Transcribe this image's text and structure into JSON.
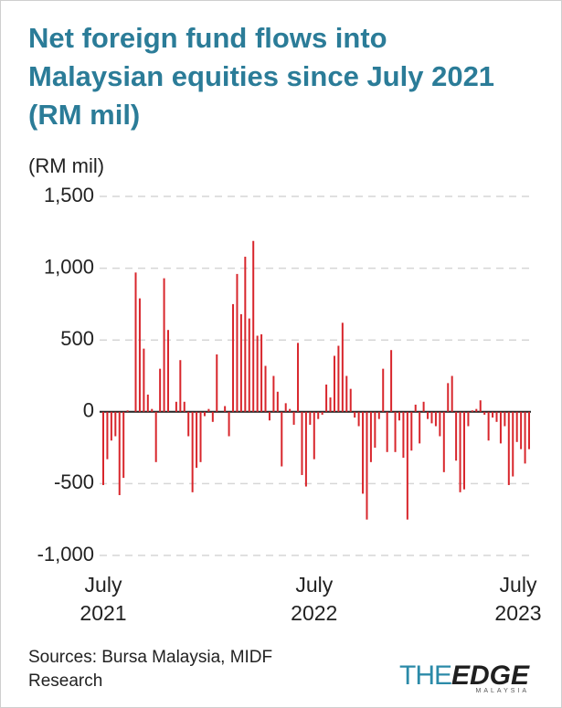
{
  "chart_data": {
    "type": "bar",
    "title": "Net foreign fund flows into Malaysian equities since July 2021 (RM mil)",
    "y_label": "(RM mil)",
    "source": "Sources: Bursa Malaysia, MIDF Research",
    "logo": {
      "the": "THE",
      "edge": "EDGE",
      "sub": "MALAYSIA"
    },
    "color": "#d8262c",
    "grid": true,
    "ylim": [
      -1000,
      1500
    ],
    "yticks": [
      {
        "value": -1000,
        "label": "-1,000"
      },
      -500,
      0,
      500,
      {
        "value": 1000,
        "label": "1,000"
      },
      {
        "value": 1500,
        "label": "1,500"
      }
    ],
    "categories": [
      "July 2021",
      null,
      null,
      null,
      null,
      null,
      null,
      null,
      null,
      null,
      null,
      null,
      null,
      null,
      null,
      null,
      null,
      null,
      null,
      null,
      null,
      null,
      null,
      null,
      null,
      null,
      null,
      null,
      null,
      null,
      null,
      null,
      null,
      null,
      null,
      null,
      null,
      null,
      null,
      null,
      null,
      null,
      null,
      null,
      null,
      null,
      null,
      null,
      null,
      null,
      null,
      null,
      "July 2022",
      null,
      null,
      null,
      null,
      null,
      null,
      null,
      null,
      null,
      null,
      null,
      null,
      null,
      null,
      null,
      null,
      null,
      null,
      null,
      null,
      null,
      null,
      null,
      null,
      null,
      null,
      null,
      null,
      null,
      null,
      null,
      null,
      null,
      null,
      null,
      null,
      null,
      null,
      null,
      null,
      null,
      null,
      null,
      null,
      null,
      null,
      null,
      null,
      null,
      null,
      "July 2023",
      null,
      null
    ],
    "values": [
      -510,
      -330,
      -200,
      -170,
      -580,
      -460,
      10,
      0,
      970,
      790,
      440,
      120,
      20,
      -350,
      300,
      930,
      570,
      0,
      70,
      360,
      70,
      -170,
      -560,
      -390,
      -350,
      -30,
      20,
      -70,
      400,
      0,
      40,
      -170,
      750,
      960,
      680,
      1080,
      650,
      1190,
      530,
      540,
      320,
      -60,
      250,
      140,
      -380,
      60,
      20,
      -90,
      480,
      -440,
      -520,
      -90,
      -330,
      -50,
      -20,
      190,
      100,
      390,
      460,
      620,
      250,
      160,
      -40,
      -100,
      -570,
      -750,
      -350,
      -250,
      -50,
      300,
      -280,
      430,
      -280,
      -60,
      -320,
      -750,
      -270,
      50,
      -220,
      70,
      -50,
      -80,
      -100,
      -170,
      -420,
      200,
      250,
      -340,
      -560,
      -540,
      -100,
      10,
      20,
      80,
      -20,
      -200,
      -40,
      -70,
      -220,
      -100,
      -510,
      -450,
      -210,
      -260,
      -360,
      -260
    ]
  }
}
